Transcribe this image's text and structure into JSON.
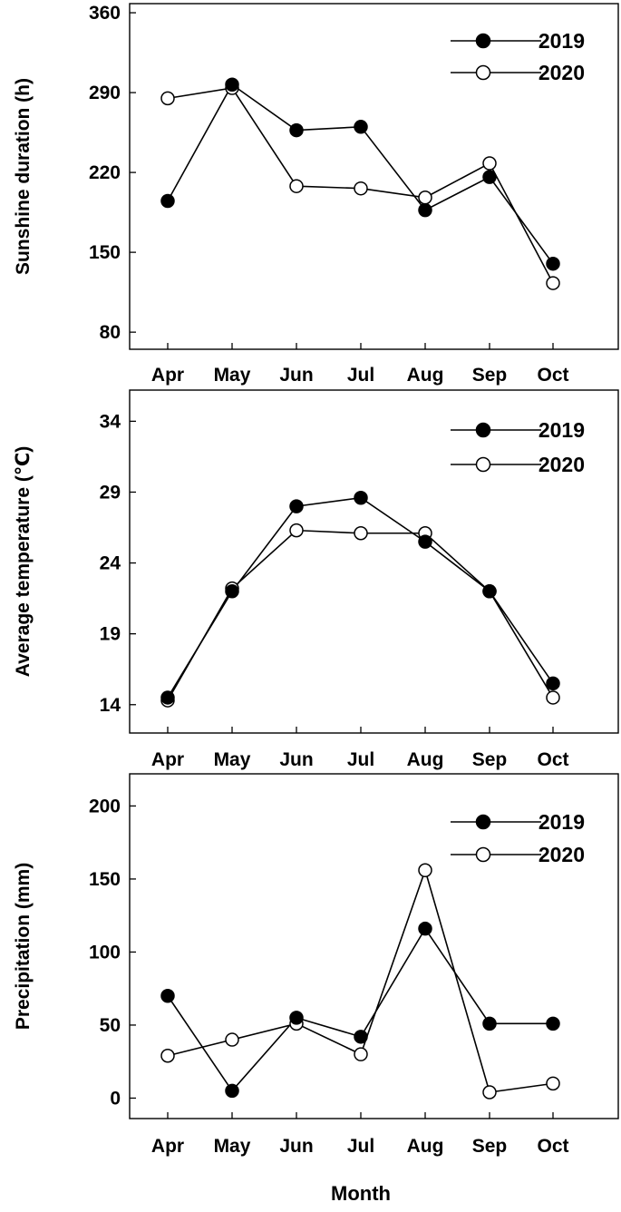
{
  "figure": {
    "xlabel": "Month"
  },
  "chart_data": [
    {
      "type": "line",
      "categories": [
        "Apr",
        "May",
        "Jun",
        "Jul",
        "Aug",
        "Sep",
        "Oct"
      ],
      "ylabel": "Sunshine duration (h)",
      "ylim": [
        65,
        368
      ],
      "yticks": [
        80,
        150,
        220,
        290,
        360
      ],
      "legend": "top-right",
      "grid": false,
      "series": [
        {
          "name": "2019",
          "marker": "filled-circle",
          "color": "#000000",
          "values": [
            195,
            297,
            257,
            260,
            187,
            216,
            140
          ]
        },
        {
          "name": "2020",
          "marker": "open-circle",
          "color": "#000000",
          "values": [
            285,
            294,
            208,
            206,
            198,
            228,
            123
          ]
        }
      ]
    },
    {
      "type": "line",
      "categories": [
        "Apr",
        "May",
        "Jun",
        "Jul",
        "Aug",
        "Sep",
        "Oct"
      ],
      "ylabel": "Average temperature (℃)",
      "ylim": [
        12,
        36.2
      ],
      "yticks": [
        14,
        19,
        24,
        29,
        34
      ],
      "legend": "top-right",
      "grid": false,
      "series": [
        {
          "name": "2019",
          "marker": "filled-circle",
          "color": "#000000",
          "values": [
            14.5,
            22.0,
            28.0,
            28.6,
            25.5,
            22.0,
            15.5
          ]
        },
        {
          "name": "2020",
          "marker": "open-circle",
          "color": "#000000",
          "values": [
            14.3,
            22.2,
            26.3,
            26.1,
            26.1,
            22.0,
            14.5
          ]
        }
      ]
    },
    {
      "type": "line",
      "categories": [
        "Apr",
        "May",
        "Jun",
        "Jul",
        "Aug",
        "Sep",
        "Oct"
      ],
      "ylabel": "Precipitation (mm)",
      "ylim": [
        -14,
        222
      ],
      "yticks": [
        0,
        50,
        100,
        150,
        200
      ],
      "legend": "top-right",
      "grid": false,
      "series": [
        {
          "name": "2019",
          "marker": "filled-circle",
          "color": "#000000",
          "values": [
            70,
            5,
            55,
            42,
            116,
            51,
            51
          ]
        },
        {
          "name": "2020",
          "marker": "open-circle",
          "color": "#000000",
          "values": [
            29,
            40,
            51,
            30,
            156,
            4,
            10
          ]
        }
      ]
    }
  ]
}
